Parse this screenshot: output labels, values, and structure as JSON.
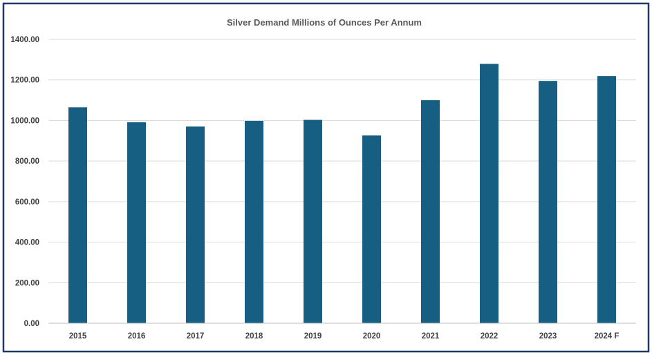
{
  "colors": {
    "bar": "#175f82",
    "frame_border": "#1f3864"
  },
  "chart_data": {
    "type": "bar",
    "title": "Silver Demand Millions of Ounces Per Annum",
    "xlabel": "",
    "ylabel": "",
    "categories": [
      "2015",
      "2016",
      "2017",
      "2018",
      "2019",
      "2020",
      "2021",
      "2022",
      "2023",
      "2024 F"
    ],
    "series": [
      {
        "values": [
          1065,
          991,
          970,
          998,
          1003,
          926,
          1100,
          1279,
          1195,
          1219
        ]
      }
    ],
    "ylim": [
      0,
      1400
    ],
    "yticks": [
      "0.00",
      "200.00",
      "400.00",
      "600.00",
      "800.00",
      "1000.00",
      "1200.00",
      "1400.00"
    ],
    "grid": true,
    "legend": "none"
  }
}
